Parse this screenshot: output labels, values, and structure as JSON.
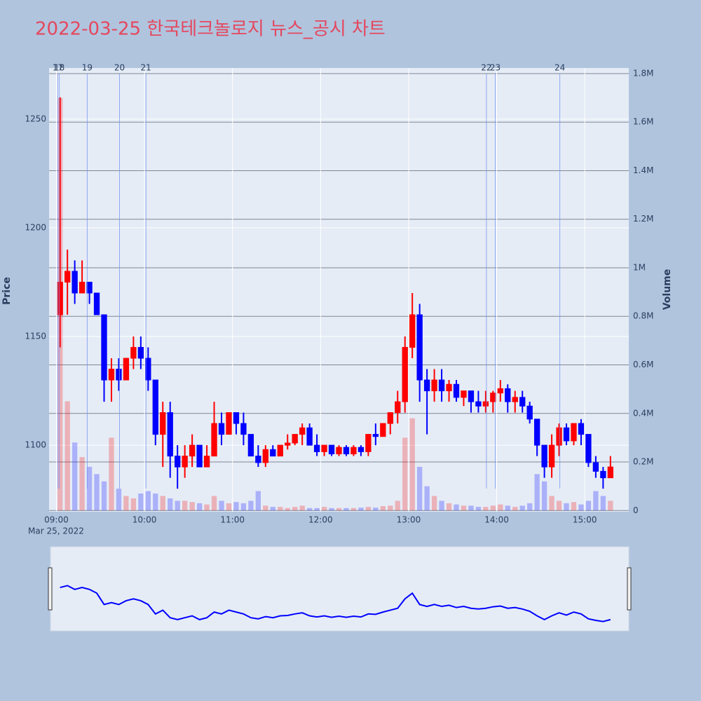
{
  "chart_data": {
    "type": "candlestick",
    "title": "2022-03-25 한국테크놀로지 뉴스_공시 차트",
    "y_label": "Price",
    "y2_label": "Volume",
    "x_date_label": "Mar 25, 2022",
    "xlim": [
      "08:55",
      "15:30"
    ],
    "xticks": [
      "09:00",
      "10:00",
      "11:00",
      "12:00",
      "13:00",
      "14:00",
      "15:00"
    ],
    "ylim": [
      1069.4,
      1273.5
    ],
    "yticks": [
      1100,
      1150,
      1200,
      1250
    ],
    "y2lim": [
      -5000,
      1823000
    ],
    "y2ticks": [
      0,
      {
        "value": 200000,
        "label": "0.2M"
      },
      {
        "value": 400000,
        "label": "0.4M"
      },
      {
        "value": 600000,
        "label": "0.6M"
      },
      {
        "value": 800000,
        "label": "0.8M"
      },
      {
        "value": 1000000,
        "label": "1M"
      },
      {
        "value": 1200000,
        "label": "1.2M"
      },
      {
        "value": 1400000,
        "label": "1.4M"
      },
      {
        "value": 1600000,
        "label": "1.6M"
      },
      {
        "value": 1800000,
        "label": "1.8M"
      }
    ],
    "grid": true,
    "increasing_color": "#ff0000",
    "decreasing_color": "#0000ff",
    "news_color": "#6f8ff0",
    "news": [
      {
        "label": "17",
        "x": "09:01"
      },
      {
        "label": "18",
        "x": "09:02"
      },
      {
        "label": "19",
        "x": "09:21"
      },
      {
        "label": "20",
        "x": "09:43"
      },
      {
        "label": "21",
        "x": "10:01"
      },
      {
        "label": "22",
        "x": "13:53"
      },
      {
        "label": "23",
        "x": "13:59"
      },
      {
        "label": "24",
        "x": "14:43"
      }
    ],
    "candles": {
      "x": [
        "09:00",
        "09:05",
        "09:10",
        "09:15",
        "09:20",
        "09:25",
        "09:30",
        "09:35",
        "09:40",
        "09:45",
        "09:50",
        "09:55",
        "10:00",
        "10:05",
        "10:10",
        "10:15",
        "10:20",
        "10:25",
        "10:30",
        "10:35",
        "10:40",
        "10:45",
        "10:50",
        "10:55",
        "11:00",
        "11:05",
        "11:10",
        "11:15",
        "11:20",
        "11:25",
        "11:30",
        "11:35",
        "11:40",
        "11:45",
        "11:50",
        "11:55",
        "12:00",
        "12:05",
        "12:10",
        "12:15",
        "12:20",
        "12:25",
        "12:30",
        "12:35",
        "12:40",
        "12:45",
        "12:50",
        "12:55",
        "13:00",
        "13:05",
        "13:10",
        "13:15",
        "13:20",
        "13:25",
        "13:30",
        "13:35",
        "13:40",
        "13:45",
        "13:50",
        "13:55",
        "14:00",
        "14:05",
        "14:10",
        "14:15",
        "14:20",
        "14:25",
        "14:30",
        "14:35",
        "14:40",
        "14:45",
        "14:50",
        "14:55",
        "15:00",
        "15:05",
        "15:10",
        "15:15"
      ],
      "open": [
        1160,
        1175,
        1180,
        1170,
        1175,
        1170,
        1160,
        1130,
        1135,
        1130,
        1140,
        1145,
        1140,
        1130,
        1105,
        1115,
        1095,
        1090,
        1095,
        1100,
        1090,
        1095,
        1110,
        1105,
        1115,
        1110,
        1105,
        1095,
        1092,
        1098,
        1095,
        1100,
        1101,
        1105,
        1108,
        1100,
        1097,
        1100,
        1096,
        1099,
        1096,
        1099,
        1097,
        1105,
        1104,
        1110,
        1115,
        1120,
        1145,
        1160,
        1130,
        1125,
        1130,
        1125,
        1128,
        1122,
        1125,
        1120,
        1118,
        1120,
        1124,
        1126,
        1120,
        1122,
        1118,
        1112,
        1100,
        1090,
        1100,
        1108,
        1102,
        1110,
        1105,
        1092,
        1088,
        1085
      ],
      "high": [
        1260,
        1190,
        1185,
        1185,
        1175,
        1170,
        1160,
        1140,
        1140,
        1140,
        1150,
        1150,
        1145,
        1130,
        1120,
        1120,
        1100,
        1100,
        1105,
        1100,
        1100,
        1120,
        1115,
        1115,
        1115,
        1115,
        1105,
        1100,
        1100,
        1100,
        1100,
        1105,
        1105,
        1110,
        1110,
        1105,
        1100,
        1100,
        1100,
        1100,
        1100,
        1100,
        1105,
        1110,
        1110,
        1115,
        1125,
        1150,
        1170,
        1165,
        1135,
        1135,
        1135,
        1130,
        1130,
        1125,
        1125,
        1125,
        1125,
        1125,
        1130,
        1128,
        1125,
        1125,
        1120,
        1112,
        1100,
        1105,
        1110,
        1110,
        1110,
        1112,
        1105,
        1095,
        1090,
        1095
      ],
      "low": [
        1145,
        1160,
        1165,
        1170,
        1165,
        1160,
        1120,
        1120,
        1125,
        1130,
        1135,
        1135,
        1125,
        1100,
        1090,
        1085,
        1080,
        1085,
        1090,
        1090,
        1090,
        1095,
        1100,
        1105,
        1105,
        1100,
        1095,
        1090,
        1090,
        1095,
        1095,
        1098,
        1100,
        1100,
        1100,
        1095,
        1095,
        1095,
        1095,
        1095,
        1095,
        1095,
        1095,
        1100,
        1104,
        1105,
        1110,
        1115,
        1140,
        1120,
        1105,
        1120,
        1120,
        1120,
        1120,
        1118,
        1115,
        1115,
        1115,
        1115,
        1120,
        1115,
        1115,
        1115,
        1110,
        1095,
        1085,
        1085,
        1095,
        1100,
        1100,
        1100,
        1090,
        1085,
        1080,
        1085
      ],
      "close": [
        1175,
        1180,
        1170,
        1175,
        1170,
        1160,
        1130,
        1135,
        1130,
        1140,
        1145,
        1140,
        1130,
        1105,
        1115,
        1095,
        1090,
        1095,
        1100,
        1090,
        1095,
        1110,
        1105,
        1115,
        1110,
        1105,
        1095,
        1092,
        1098,
        1095,
        1100,
        1101,
        1105,
        1108,
        1100,
        1097,
        1100,
        1096,
        1099,
        1096,
        1099,
        1097,
        1105,
        1104,
        1110,
        1115,
        1120,
        1145,
        1160,
        1130,
        1125,
        1130,
        1125,
        1128,
        1122,
        1125,
        1120,
        1118,
        1120,
        1124,
        1126,
        1120,
        1122,
        1118,
        1112,
        1100,
        1090,
        1100,
        1108,
        1102,
        1110,
        1105,
        1092,
        1088,
        1085,
        1090
      ],
      "volume": [
        1700000,
        450000,
        280000,
        220000,
        180000,
        150000,
        120000,
        300000,
        90000,
        60000,
        50000,
        70000,
        80000,
        70000,
        60000,
        50000,
        40000,
        40000,
        35000,
        30000,
        25000,
        60000,
        40000,
        30000,
        35000,
        30000,
        40000,
        80000,
        20000,
        15000,
        15000,
        10000,
        15000,
        20000,
        10000,
        10000,
        15000,
        10000,
        10000,
        10000,
        10000,
        12000,
        15000,
        12000,
        18000,
        20000,
        40000,
        300000,
        380000,
        180000,
        100000,
        60000,
        40000,
        30000,
        25000,
        20000,
        20000,
        15000,
        15000,
        20000,
        25000,
        20000,
        15000,
        20000,
        30000,
        150000,
        120000,
        60000,
        40000,
        30000,
        35000,
        25000,
        40000,
        80000,
        60000,
        40000
      ]
    }
  }
}
